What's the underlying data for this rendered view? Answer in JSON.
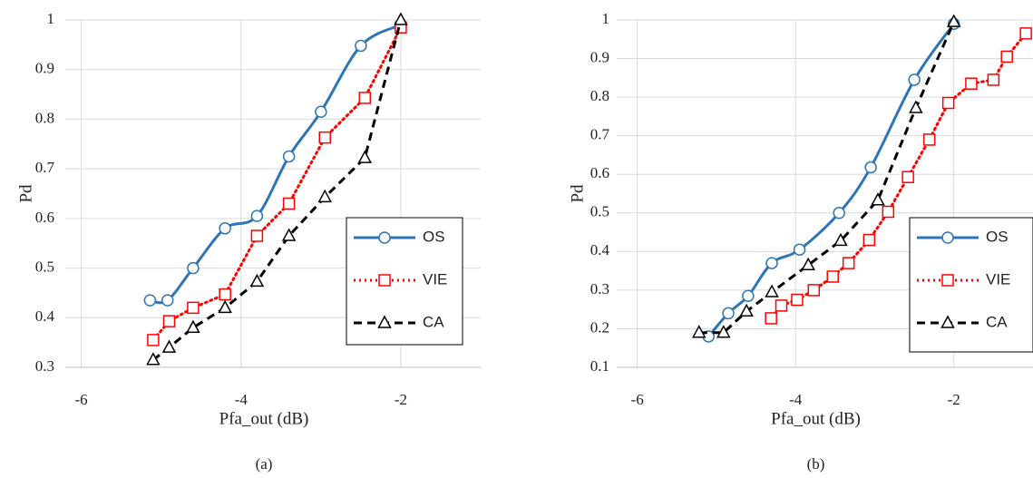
{
  "chart_data": [
    {
      "type": "line",
      "caption": "(a)",
      "x_label": "Pfa_out (dB)",
      "y_label": "Pd",
      "xlim": [
        -6.2,
        -1
      ],
      "xticks": [
        -6,
        -4,
        -2
      ],
      "ylim": [
        0.3,
        1
      ],
      "yticks": [
        0.3,
        0.4,
        0.5,
        0.6,
        0.7,
        0.8,
        0.9,
        1
      ],
      "grid": true,
      "legend": "lower right",
      "series": [
        {
          "name": "OS",
          "color": "#2e75b6",
          "marker": "circle",
          "dash": "solid",
          "smooth": true,
          "x": [
            -5.14,
            -4.92,
            -4.6,
            -4.2,
            -3.8,
            -3.4,
            -3.0,
            -2.5,
            -2.0
          ],
          "values": [
            0.435,
            0.435,
            0.5,
            0.58,
            0.605,
            0.725,
            0.815,
            0.948,
            0.99
          ]
        },
        {
          "name": "VIE",
          "color": "#ff0000",
          "marker": "square",
          "dash": "dotted",
          "smooth": false,
          "x": [
            -5.1,
            -4.9,
            -4.6,
            -4.2,
            -3.8,
            -3.4,
            -2.95,
            -2.45,
            -2.0
          ],
          "values": [
            0.355,
            0.393,
            0.42,
            0.447,
            0.565,
            0.63,
            0.763,
            0.843,
            0.985
          ]
        },
        {
          "name": "CA",
          "color": "#000000",
          "marker": "triangle",
          "dash": "dashed",
          "smooth": false,
          "x": [
            -5.1,
            -4.9,
            -4.6,
            -4.2,
            -3.8,
            -3.4,
            -2.95,
            -2.45,
            -2.0
          ],
          "values": [
            0.315,
            0.34,
            0.38,
            0.42,
            0.473,
            0.565,
            0.643,
            0.722,
            1.0
          ]
        }
      ]
    },
    {
      "type": "line",
      "caption": "(b)",
      "x_label": "Pfa_out (dB)",
      "y_label": "Pd",
      "xlim": [
        -6.26,
        -1
      ],
      "xticks": [
        -6,
        -4,
        -2
      ],
      "ylim": [
        0.1,
        1
      ],
      "yticks": [
        0.1,
        0.2,
        0.3,
        0.4,
        0.5,
        0.6,
        0.7,
        0.8,
        0.9,
        1
      ],
      "grid": true,
      "legend": "lower right",
      "series": [
        {
          "name": "OS",
          "color": "#2e75b6",
          "marker": "circle",
          "dash": "solid",
          "smooth": true,
          "x": [
            -5.1,
            -4.85,
            -4.6,
            -4.3,
            -3.95,
            -3.45,
            -3.05,
            -2.5,
            -2.0
          ],
          "values": [
            0.18,
            0.24,
            0.285,
            0.37,
            0.405,
            0.5,
            0.618,
            0.845,
            0.99
          ]
        },
        {
          "name": "VIE",
          "color": "#ff0000",
          "marker": "square",
          "dash": "dotted",
          "smooth": false,
          "x": [
            -4.31,
            -4.18,
            -3.98,
            -3.77,
            -3.53,
            -3.33,
            -3.07,
            -2.83,
            -2.58,
            -2.31,
            -2.07,
            -1.78,
            -1.5,
            -1.33,
            -1.09
          ],
          "values": [
            0.227,
            0.26,
            0.275,
            0.3,
            0.335,
            0.37,
            0.43,
            0.503,
            0.593,
            0.69,
            0.785,
            0.835,
            0.845,
            0.905,
            0.965
          ]
        },
        {
          "name": "CA",
          "color": "#000000",
          "marker": "triangle",
          "dash": "dashed",
          "smooth": false,
          "x": [
            -5.22,
            -4.91,
            -4.62,
            -4.3,
            -3.84,
            -3.43,
            -2.96,
            -2.48,
            -2.0
          ],
          "values": [
            0.19,
            0.19,
            0.245,
            0.295,
            0.365,
            0.428,
            0.533,
            0.772,
            0.995
          ]
        }
      ]
    }
  ]
}
